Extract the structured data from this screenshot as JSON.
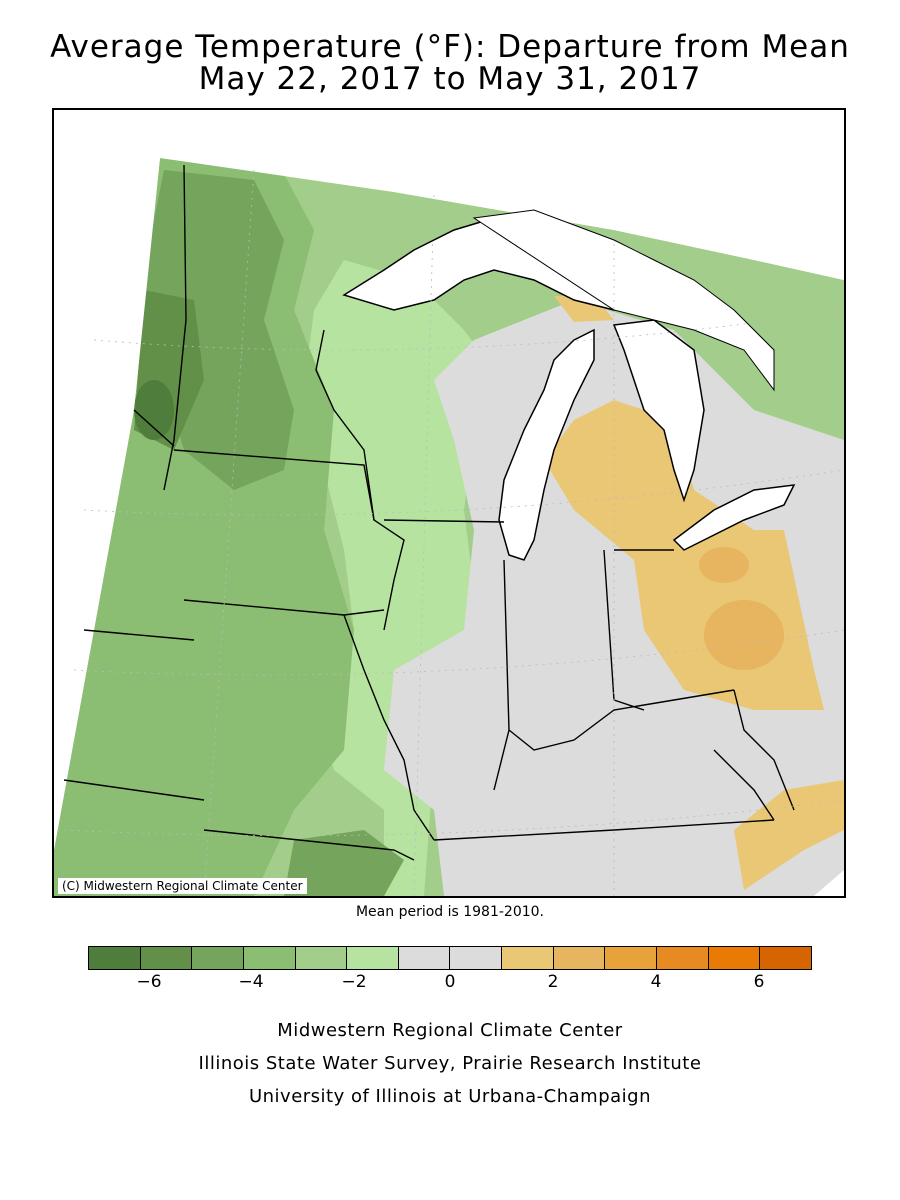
{
  "title": {
    "line1": "Average Temperature (°F): Departure from Mean",
    "line2": "May 22, 2017 to May 31, 2017"
  },
  "map": {
    "copyright": "(C) Midwestern Regional Climate Center",
    "colors": {
      "minus6": "#4f7d3b",
      "minus5": "#629048",
      "minus4": "#75a45c",
      "minus3": "#8bbd72",
      "minus2": "#a2cd8b",
      "minus1": "#b6e3a0",
      "zero": "#dcdcdc",
      "plus1": "#e9c774",
      "plus2": "#e7b460",
      "water": "#ffffff",
      "border": "#000000"
    }
  },
  "mean_period": "Mean period is 1981-2010.",
  "legend": {
    "colors": [
      "#4f7d3b",
      "#629048",
      "#75a45c",
      "#8bbd72",
      "#a2cd8b",
      "#b6e3a0",
      "#dcdcdc",
      "#dcdcdc",
      "#e9c774",
      "#e7b460",
      "#e8a23a",
      "#e88a22",
      "#e87a05",
      "#d66400"
    ],
    "ticks": [
      "−6",
      "−4",
      "−2",
      "0",
      "2",
      "4",
      "6"
    ]
  },
  "credits": {
    "line1": "Midwestern Regional Climate Center",
    "line2": "Illinois State Water Survey, Prairie Research Institute",
    "line3": "University of Illinois at Urbana-Champaign"
  }
}
